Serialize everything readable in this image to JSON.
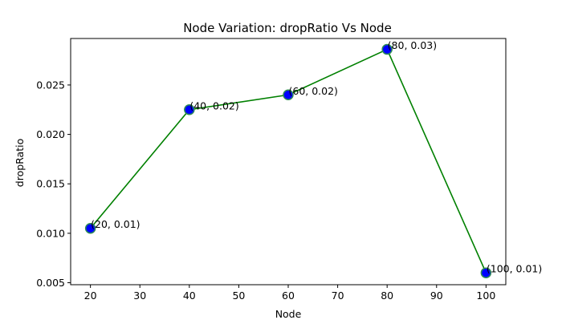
{
  "chart_data": {
    "type": "line",
    "title": "Node Variation: dropRatio Vs Node",
    "xlabel": "Node",
    "ylabel": "dropRatio",
    "x": [
      20,
      40,
      60,
      80,
      100
    ],
    "series": [
      {
        "values": [
          0.0105,
          0.0225,
          0.024,
          0.0286,
          0.006
        ],
        "point_labels": [
          "(20, 0.01)",
          "(40, 0.02)",
          "(60, 0.02)",
          "(80, 0.03)",
          "(100, 0.01)"
        ]
      }
    ],
    "xlim": [
      16,
      104
    ],
    "ylim": [
      0.0048,
      0.0297
    ],
    "xticks": [
      20,
      30,
      40,
      50,
      60,
      70,
      80,
      90,
      100
    ],
    "xtick_labels": [
      "20",
      "30",
      "40",
      "50",
      "60",
      "70",
      "80",
      "90",
      "100"
    ],
    "yticks": [
      0.005,
      0.01,
      0.015,
      0.02,
      0.025
    ],
    "ytick_labels": [
      "0.005",
      "0.010",
      "0.015",
      "0.020",
      "0.025"
    ],
    "grid": false,
    "legend": "none",
    "colors": {
      "line": "#008000",
      "marker_fill": "#0000ff",
      "marker_edge": "#2e8b57"
    }
  }
}
